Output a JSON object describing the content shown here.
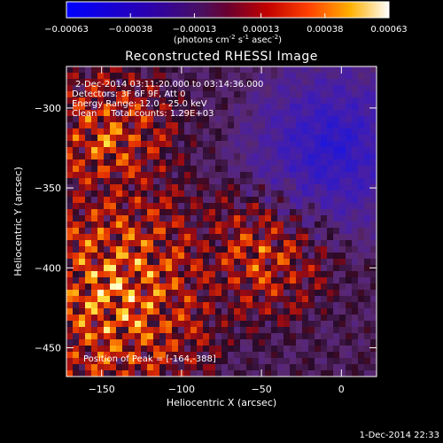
{
  "chart_data": {
    "type": "heatmap",
    "title": "Reconstructed RHESSI Image",
    "xlabel": "Heliocentric X (arcsec)",
    "ylabel": "Heliocentric Y (arcsec)",
    "xlim": [
      -172,
      22
    ],
    "ylim": [
      -468,
      -274
    ],
    "x_ticks": [
      -150,
      -100,
      -50,
      0
    ],
    "y_ticks": [
      -300,
      -350,
      -400,
      -450
    ],
    "colorbar": {
      "range": [
        -0.00063,
        0.00063
      ],
      "ticks": [
        "-0.00063",
        "-0.00038",
        "-0.00013",
        "0.00013",
        "0.00038",
        "0.00063"
      ],
      "unit_label": "(photons cm",
      "unit_sup1": "-2",
      "unit_mid": " s",
      "unit_sup2": "-1",
      "unit_mid2": " asec",
      "unit_sup3": "-2",
      "unit_end": ")"
    },
    "annotations": [
      "2-Dec-2014 03:11:20.000 to 03:14:36.000",
      "Detectors: 3F 6F 9F, Att 0",
      "Energy Range: 12.0 - 25.0 keV",
      "Clean     Total counts: 1.29E+03"
    ],
    "peak_label": "Position of Peak = [-164,-388]",
    "peak": [
      -164,
      -388
    ]
  },
  "footer_timestamp": "1-Dec-2014 22:33"
}
